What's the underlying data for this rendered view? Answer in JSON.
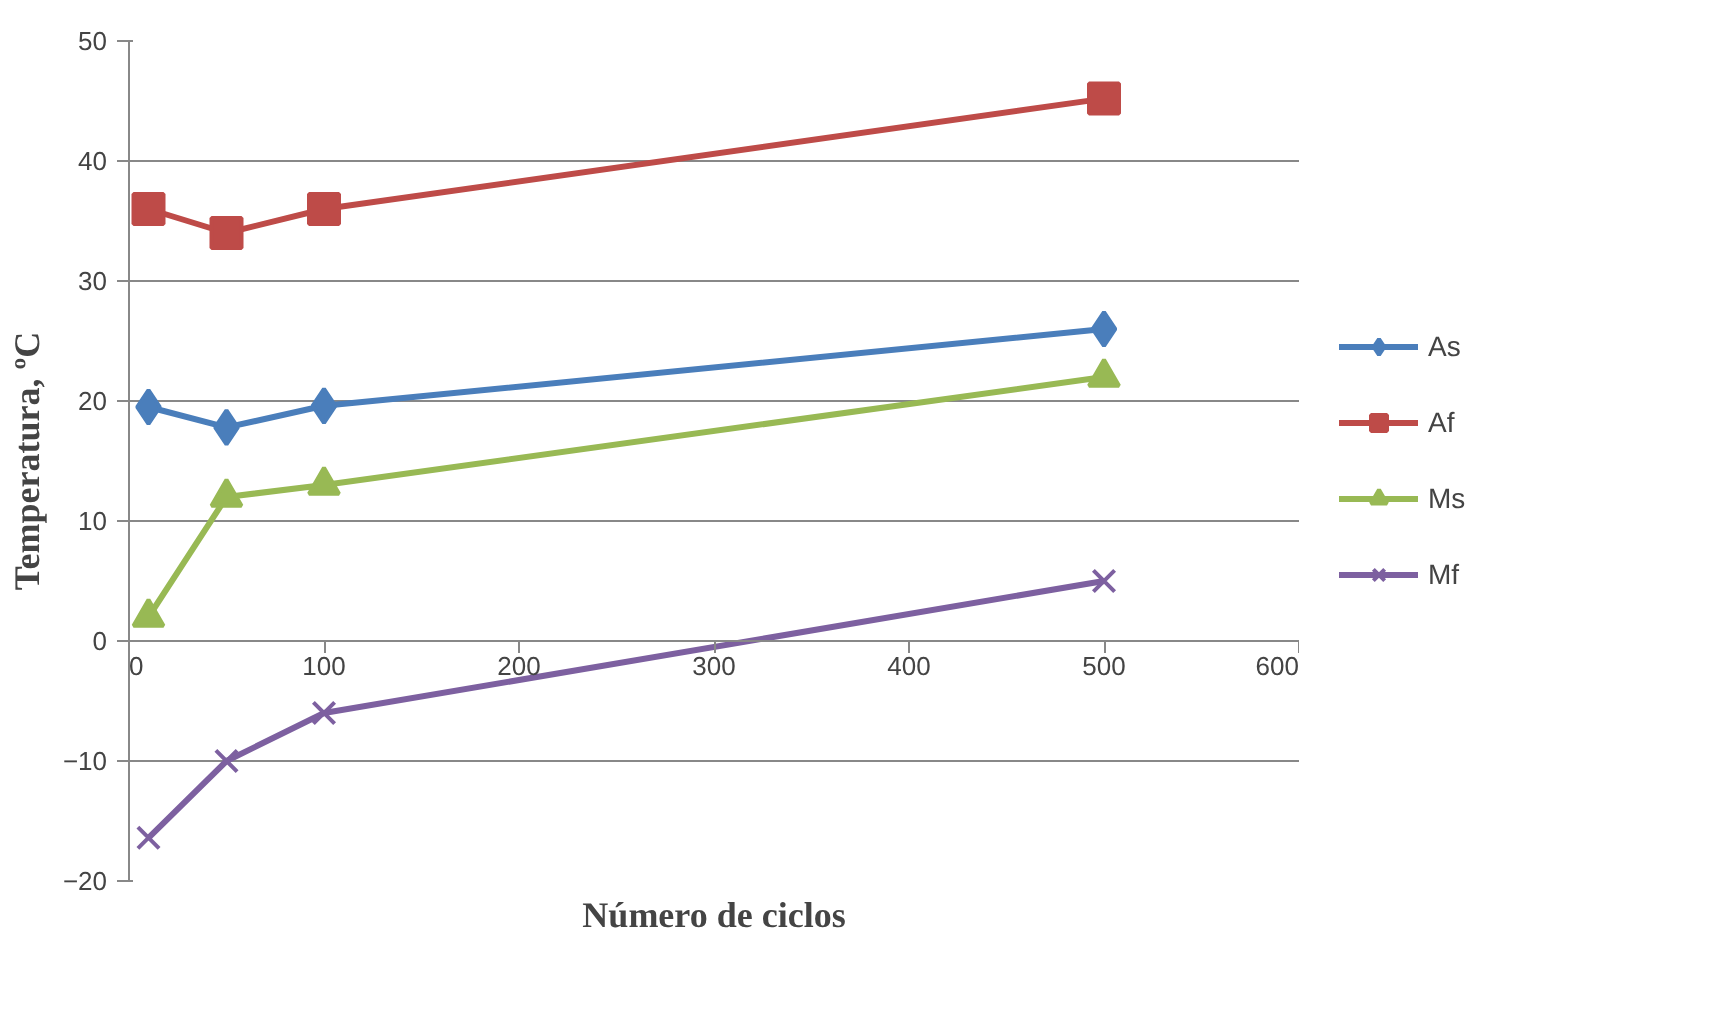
{
  "chart_data": {
    "type": "line",
    "xlabel": "Número de ciclos",
    "ylabel": "Temperatura, ºC",
    "x": [
      10,
      50,
      100,
      500
    ],
    "series": [
      {
        "name": "As",
        "color": "#4a7ebb",
        "marker": "diamond",
        "values": [
          19.5,
          17.8,
          19.6,
          26
        ]
      },
      {
        "name": "Af",
        "color": "#be4b48",
        "marker": "square",
        "values": [
          36,
          34,
          36,
          45.2
        ]
      },
      {
        "name": "Ms",
        "color": "#98b954",
        "marker": "triangle",
        "values": [
          2,
          12,
          13,
          22
        ]
      },
      {
        "name": "Mf",
        "color": "#7d60a0",
        "marker": "cross",
        "values": [
          -16.4,
          -10,
          -6,
          5
        ]
      }
    ],
    "xlim": [
      0,
      600
    ],
    "xticks": [
      0,
      100,
      200,
      300,
      400,
      500,
      600
    ],
    "ylim": [
      -20,
      50
    ],
    "yticks": [
      -20,
      -10,
      0,
      10,
      20,
      30,
      40,
      50
    ],
    "grid": "y",
    "legend": "right",
    "line_style": "solid"
  }
}
